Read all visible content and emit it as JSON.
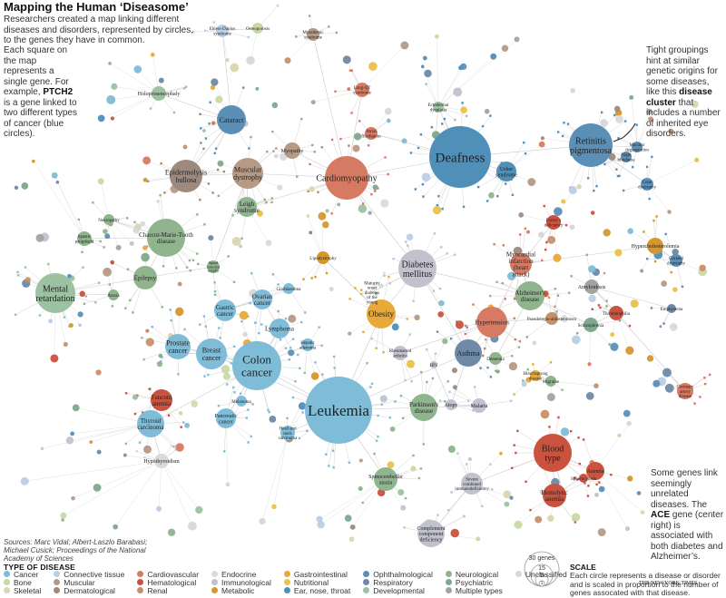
{
  "title": "Mapping the Human ‘Diseasome’",
  "intro": "Researchers created a map linking different diseases and disorders, represented by circles, to the genes they have in common.",
  "square_note_pre": "Each square on the map represents a single gene. For example, ",
  "square_note_gene": "PTCH2",
  "square_note_post": " is a gene linked to two different types of cancer (blue circles).",
  "cluster_note_pre": "Tight groupings hint at similar genetic origins for some diseases, like this ",
  "cluster_note_bold": "disease cluster",
  "cluster_note_post": " that includes a number of inherited eye disorders.",
  "genes_note_pre": "Some genes link seemingly unrelated diseases. The ",
  "genes_note_bold": "ACE",
  "genes_note_post": " gene (center right) is associated with both diabetes and Alzheimer’s.",
  "sources": "Sources: Marc Vidal; Albert-Laszlo Barabasi; Michael Cusick; Proceedings of the National Academy of Sciences",
  "legend_title": "TYPE OF DISEASE",
  "legend": [
    {
      "label": "Cancer",
      "color": "#7fbcd8"
    },
    {
      "label": "Bone",
      "color": "#c9d9a6"
    },
    {
      "label": "Skeletal",
      "color": "#d9d6b0"
    },
    {
      "label": "Connective tissue",
      "color": "#b9cfe6"
    },
    {
      "label": "Muscular",
      "color": "#b69a86"
    },
    {
      "label": "Dermatological",
      "color": "#9c8a7e"
    },
    {
      "label": "Cardiovascular",
      "color": "#d77a63"
    },
    {
      "label": "Hematological",
      "color": "#c9533e"
    },
    {
      "label": "Renal",
      "color": "#c98f6b"
    },
    {
      "label": "Endocrine",
      "color": "#d9dadd"
    },
    {
      "label": "Immunological",
      "color": "#c2c2cf"
    },
    {
      "label": "Metabolic",
      "color": "#d5962e"
    },
    {
      "label": "Gastrointestinal",
      "color": "#e8a93a"
    },
    {
      "label": "Nutritional",
      "color": "#e9c24a"
    },
    {
      "label": "Ear, nose, throat",
      "color": "#4f8fb8"
    },
    {
      "label": "Ophthalmological",
      "color": "#5c8fb6"
    },
    {
      "label": "Respiratory",
      "color": "#6e8aa6"
    },
    {
      "label": "Developmental",
      "color": "#9cc2a2"
    },
    {
      "label": "Neurological",
      "color": "#8fb48e"
    },
    {
      "label": "Psychiatric",
      "color": "#7fa98d"
    },
    {
      "label": "Multiple types",
      "color": "#a3a3a3"
    },
    {
      "label": "Unclassified",
      "color": "#d7d7d7"
    }
  ],
  "scale_title": "SCALE",
  "scale_circles": [
    "30 genes",
    "15",
    "5",
    "1"
  ],
  "scale_note": "Each circle represents a disease or disorder and is scaled in proportion to the number of genes assocated with that disease.",
  "credit": "THE NEW YORK TIMES",
  "diseases": [
    {
      "label": "Deafness",
      "color": "#4f8fb8"
    },
    {
      "label": "Leukemia",
      "color": "#7fbcd8"
    },
    {
      "label": "Colon cancer",
      "color": "#7fbcd8"
    },
    {
      "label": "Cardiomyopathy",
      "color": "#d77a63"
    },
    {
      "label": "Retinitis pigmentosa",
      "color": "#5c8fb6"
    },
    {
      "label": "Diabetes mellitus",
      "color": "#c2c2cf"
    },
    {
      "label": "Obesity",
      "color": "#e8a93a"
    },
    {
      "label": "Mental retardation",
      "color": "#9cc2a2"
    },
    {
      "label": "Breast cancer",
      "color": "#7fbcd8"
    },
    {
      "label": "Prostate cancer",
      "color": "#7fbcd8"
    },
    {
      "label": "Charcot-Marie-Tooth disease",
      "color": "#8fb48e"
    },
    {
      "label": "Blood type",
      "color": "#c9533e"
    },
    {
      "label": "Cataract",
      "color": "#5c8fb6"
    },
    {
      "label": "Epidermolysis bullosa",
      "color": "#9c8a7e"
    },
    {
      "label": "Muscular dystrophy",
      "color": "#b69a86"
    },
    {
      "label": "Alzheimer's disease",
      "color": "#8fb48e"
    },
    {
      "label": "Hypertension",
      "color": "#d77a63"
    },
    {
      "label": "Asthma",
      "color": "#6e8aa6"
    },
    {
      "label": "Myocardial infarction (heart attack)",
      "color": "#d77a63"
    },
    {
      "label": "Parkinson's disease",
      "color": "#8fb48e"
    },
    {
      "label": "Epilepsy",
      "color": "#8fb48e"
    },
    {
      "label": "Thyroid carcinoma",
      "color": "#7fbcd8"
    },
    {
      "label": "Lymphoma",
      "color": "#7fbcd8"
    },
    {
      "label": "Gastric cancer",
      "color": "#7fbcd8"
    },
    {
      "label": "Ovarian cancer",
      "color": "#7fbcd8"
    },
    {
      "label": "Pancreatic cancer",
      "color": "#7fbcd8"
    },
    {
      "label": "Fanconi anemia",
      "color": "#c9533e"
    },
    {
      "label": "Hemolytic anemia",
      "color": "#c9533e"
    },
    {
      "label": "Anemia",
      "color": "#c9533e"
    },
    {
      "label": "Spinocerebellar ataxia",
      "color": "#8fb48e"
    },
    {
      "label": "Complement component deficiency",
      "color": "#c2c2cf"
    },
    {
      "label": "Severe combined immunodeficiency",
      "color": "#c2c2cf"
    },
    {
      "label": "Usher syndrome",
      "color": "#4f8fb8"
    },
    {
      "label": "Leigh syndrome",
      "color": "#8fb48e"
    },
    {
      "label": "Myopathy",
      "color": "#b69a86"
    },
    {
      "label": "Hypercholesterolemia",
      "color": "#d5962e"
    },
    {
      "label": "Schizophrenia",
      "color": "#7fa98d"
    },
    {
      "label": "Thrombophilia",
      "color": "#c9533e"
    },
    {
      "label": "Amyloidosis",
      "color": "#a3a3a3"
    },
    {
      "label": "Hypothyroidism",
      "color": "#d9dadd"
    },
    {
      "label": "Rheumatoid arthritis",
      "color": "#c2c2cf"
    },
    {
      "label": "Malaria",
      "color": "#c2c2cf"
    },
    {
      "label": "Atopy",
      "color": "#c2c2cf"
    },
    {
      "label": "Dementia",
      "color": "#8fb48e"
    },
    {
      "label": "Holoprosencephaly",
      "color": "#9cc2a2"
    },
    {
      "label": "Ehlers-Danlos syndrome",
      "color": "#b9cfe6"
    },
    {
      "label": "Osteoporosis",
      "color": "#c9d9a6"
    },
    {
      "label": "Glioblastoma",
      "color": "#7fbcd8"
    },
    {
      "label": "Head and neck carcinoma",
      "color": "#7fbcd8"
    },
    {
      "label": "Lipodystrophy",
      "color": "#d5962e"
    },
    {
      "label": "Spinal muscular atrophy",
      "color": "#8fb48e"
    },
    {
      "label": "Myasthenic syndrome",
      "color": "#b69a86"
    },
    {
      "label": "Long-QT syndrome",
      "color": "#d77a63"
    },
    {
      "label": "Atrial fibrillation",
      "color": "#d77a63"
    },
    {
      "label": "Ectodermal dysplasia",
      "color": "#9cc2a2"
    },
    {
      "label": "Coronary artery disease",
      "color": "#d77a63"
    },
    {
      "label": "Pseudohypo-aldosteronism",
      "color": "#c98f6b"
    },
    {
      "label": "Hepatic adenoma",
      "color": "#7fbcd8"
    },
    {
      "label": "Melanoma",
      "color": "#7fbcd8"
    },
    {
      "label": "Maturity onset diabetes of the young",
      "color": "#d9dadd"
    },
    {
      "label": "Factor x deficiency",
      "color": "#c9533e"
    },
    {
      "label": "Cone dystrophy",
      "color": "#5c8fb6"
    },
    {
      "label": "Spastic paraplegia",
      "color": "#8fb48e"
    },
    {
      "label": "Neuropathy",
      "color": "#8fb48e"
    },
    {
      "label": "Ataxia",
      "color": "#8fb48e"
    },
    {
      "label": "Corneal dystrophy",
      "color": "#5c8fb6"
    },
    {
      "label": "Hirschsprung disease",
      "color": "#e8a93a"
    },
    {
      "label": "Migraine",
      "color": "#8fb48e"
    },
    {
      "label": "Spherocytosis",
      "color": "#c9533e"
    },
    {
      "label": "HIV",
      "color": "#c2c2cf"
    },
    {
      "label": "Night blindness",
      "color": "#5c8fb6"
    },
    {
      "label": "Macular degeneration",
      "color": "#5c8fb6"
    },
    {
      "label": "Emphysema",
      "color": "#6e8aa6"
    }
  ]
}
